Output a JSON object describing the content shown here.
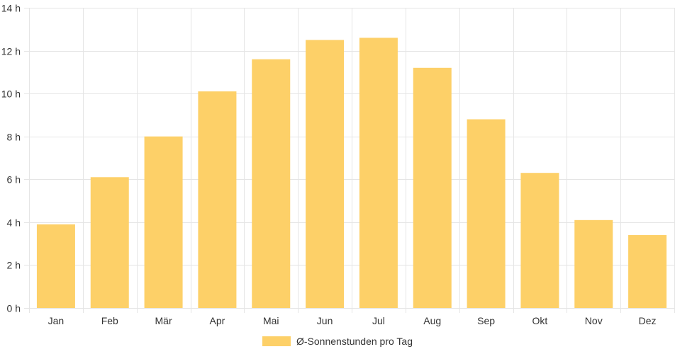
{
  "chart_data": {
    "type": "bar",
    "categories": [
      "Jan",
      "Feb",
      "Mär",
      "Apr",
      "Mai",
      "Jun",
      "Jul",
      "Aug",
      "Sep",
      "Okt",
      "Nov",
      "Dez"
    ],
    "series": [
      {
        "name": "Ø-Sonnenstunden pro Tag",
        "values": [
          3.9,
          6.1,
          8.0,
          10.1,
          11.6,
          12.5,
          12.6,
          11.2,
          8.8,
          6.3,
          4.1,
          3.4
        ],
        "color": "#fdd068"
      }
    ],
    "y_ticks": [
      "0 h",
      "2 h",
      "4 h",
      "6 h",
      "8 h",
      "10 h",
      "12 h",
      "14 h"
    ],
    "ylim": [
      0,
      14
    ],
    "grid": true,
    "legend_position": "bottom"
  },
  "colors": {
    "grid": "#e5e5e5",
    "axis_text": "#333333"
  }
}
